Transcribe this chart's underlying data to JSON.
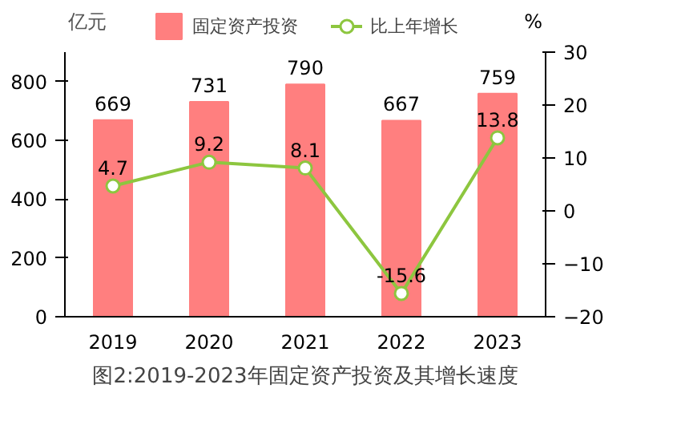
{
  "chart_data": {
    "type": "bar",
    "title": "图2:2019-2023年固定资产投资及其增长速度",
    "ylabel": "亿元",
    "y2label": "%",
    "categories": [
      "2019",
      "2020",
      "2021",
      "2022",
      "2023"
    ],
    "series": [
      {
        "name": "固定资产投资",
        "color": "#ff7f7f",
        "values": [
          669,
          731,
          790,
          667,
          759
        ]
      },
      {
        "name": "比上年增长",
        "type": "line",
        "axis": "y2",
        "color": "#8dc63f",
        "marker": "circle",
        "values": [
          4.7,
          9.2,
          8.1,
          -15.6,
          13.8
        ]
      }
    ],
    "ylim": [
      0,
      900
    ],
    "yticks": [
      0,
      200,
      400,
      600,
      800
    ],
    "y2lim": [
      -20,
      30
    ],
    "y2ticks": [
      -20,
      -10,
      0,
      10,
      20,
      30
    ],
    "data_labels": true,
    "legend": "top",
    "grid": false
  }
}
